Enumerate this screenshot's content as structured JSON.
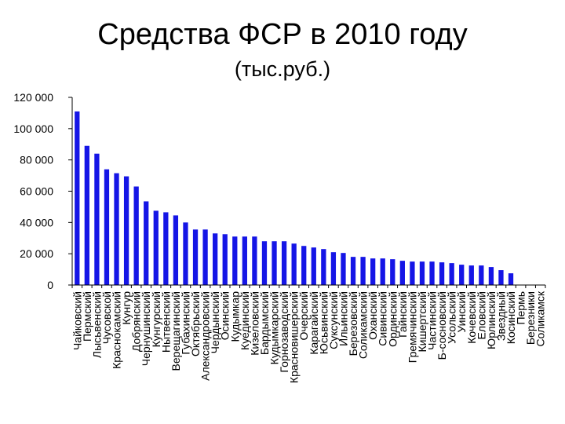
{
  "title": "Средства ФСР в 2010 году",
  "subtitle": "(тыс.руб.)",
  "colors": {
    "bar": "#1515e6",
    "axis": "#000000"
  },
  "chart_data": {
    "type": "bar",
    "title": "Средства ФСР в 2010 году",
    "subtitle": "(тыс.руб.)",
    "xlabel": "",
    "ylabel": "",
    "ylim": [
      0,
      120000
    ],
    "yticks": [
      0,
      20000,
      40000,
      60000,
      80000,
      100000,
      120000
    ],
    "ytick_labels": [
      "0",
      "20 000",
      "40 000",
      "60 000",
      "80 000",
      "100 000",
      "120 000"
    ],
    "grid": false,
    "legend": "none",
    "categories": [
      "Чайковский",
      "Пермский",
      "Лысьвенский",
      "Чусовской",
      "Краснокамский",
      "Кунгур",
      "Добрянский",
      "Чернушинский",
      "Кунгурский",
      "Нытвенский",
      "Верещагинский",
      "Губахинский",
      "Октябрьский",
      "Александровский",
      "Чердынский",
      "Осинский",
      "Кудымкар",
      "Куединский",
      "Кизеловский",
      "Бардымский",
      "Кудымкарский",
      "Горнозаводский",
      "Красновишерский",
      "Очерский",
      "Карагайский",
      "Юсьвинский",
      "Суксунский",
      "Ильинский",
      "Березовский",
      "Соликамский",
      "Оханский",
      "Сивинский",
      "Ординский",
      "Гайнский",
      "Гремячинский",
      "Кишертский",
      "Частинский",
      "Б-сосновский",
      "Усольский",
      "Уинский",
      "Кочевский",
      "Еловский",
      "Юрлинский",
      "Звездный",
      "Косинский",
      "Пермь",
      "Березники",
      "Соликамск"
    ],
    "values": [
      111000,
      89000,
      84000,
      74000,
      71500,
      69500,
      63000,
      53500,
      47500,
      46500,
      44500,
      40000,
      35500,
      35500,
      33000,
      32500,
      31000,
      31000,
      31000,
      28000,
      28000,
      28000,
      26500,
      25000,
      24000,
      23000,
      21000,
      20500,
      18000,
      18000,
      17000,
      17000,
      16500,
      15500,
      15000,
      15000,
      15000,
      14500,
      14000,
      13000,
      12500,
      12500,
      11500,
      9500,
      7500,
      0,
      0,
      0
    ]
  }
}
